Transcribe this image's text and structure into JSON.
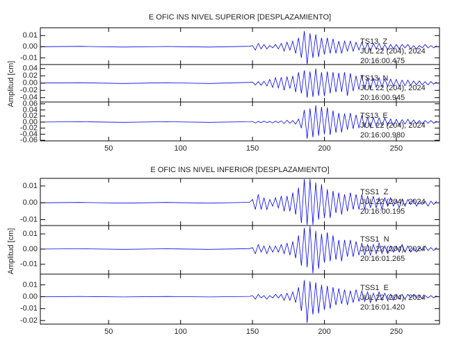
{
  "sections": [
    {
      "title": "E OFIC INS NIVEL SUPERIOR [DESPLAZAMIENTO]",
      "ylabel": "Amplitud [cm]"
    },
    {
      "title": "E OFIC INS NIVEL INFERIOR [DESPLAZAMIENTO]",
      "ylabel": "Amplitud [cm]"
    }
  ],
  "chart_data": [
    {
      "type": "line",
      "annotations": [
        "TS13  Z",
        "JUL 22 (204), 2024",
        "20:16:00.475"
      ],
      "color": "#0000ee",
      "xlim": [
        2.5,
        280
      ],
      "xticks": [
        50,
        100,
        150,
        200,
        250
      ],
      "ylim": [
        -0.016,
        0.017
      ],
      "yticks": [
        0.01,
        {
          "value": 0,
          "label": "0.00"
        },
        -0.01
      ],
      "x": [
        3,
        30,
        60,
        90,
        120,
        148,
        150,
        152,
        154,
        156,
        158,
        160,
        162,
        164,
        166,
        168,
        170,
        172,
        174,
        176,
        178,
        180,
        182,
        184,
        186,
        188,
        190,
        192,
        194,
        196,
        198,
        200,
        202,
        204,
        206,
        208,
        210,
        212,
        214,
        216,
        218,
        220,
        222,
        224,
        226,
        228,
        230,
        232,
        234,
        236,
        238,
        240,
        242,
        244,
        246,
        248,
        250,
        252,
        254,
        256,
        258,
        260,
        262,
        264,
        266,
        268,
        270,
        272,
        274,
        276,
        278
      ],
      "values": [
        0,
        0.0003,
        -0.0003,
        0.0002,
        -0.0003,
        0.0004,
        0.001,
        -0.003,
        0.003,
        -0.002,
        0.002,
        -0.002,
        0.001,
        -0.001,
        0.002,
        -0.002,
        0.003,
        -0.004,
        0.004,
        -0.003,
        0.005,
        -0.006,
        0.008,
        -0.01,
        0.014,
        -0.016,
        0.012,
        -0.01,
        0.011,
        -0.009,
        0.008,
        -0.007,
        0.008,
        -0.006,
        0.007,
        -0.006,
        0.005,
        -0.006,
        0.005,
        -0.004,
        0.005,
        -0.004,
        0.004,
        -0.003,
        0.004,
        -0.003,
        0.003,
        -0.004,
        0.003,
        -0.002,
        0.003,
        -0.003,
        0.002,
        -0.003,
        0.002,
        -0.002,
        0.002,
        -0.002,
        0.002,
        -0.001,
        0.002,
        -0.002,
        0.001,
        -0.002,
        0.001,
        -0.001,
        0.002,
        -0.001,
        0.001,
        -0.001,
        0.001
      ]
    },
    {
      "type": "line",
      "annotations": [
        "TS13  N",
        "JUL 22 (204), 2024",
        "20:16:00.945"
      ],
      "color": "#0000ee",
      "xlim": [
        2.5,
        280
      ],
      "xticks": [
        50,
        100,
        150,
        200,
        250
      ],
      "ylim": [
        -0.052,
        0.051
      ],
      "yticks": [
        0.04,
        0.02,
        {
          "value": 0,
          "label": "0.00"
        },
        -0.02,
        -0.04
      ],
      "x": [
        3,
        30,
        60,
        90,
        120,
        148,
        150,
        152,
        154,
        156,
        158,
        160,
        162,
        164,
        166,
        168,
        170,
        172,
        174,
        176,
        178,
        180,
        182,
        184,
        186,
        188,
        190,
        192,
        194,
        196,
        198,
        200,
        202,
        204,
        206,
        208,
        210,
        212,
        214,
        216,
        218,
        220,
        222,
        224,
        226,
        228,
        230,
        232,
        234,
        236,
        238,
        240,
        242,
        244,
        246,
        248,
        250,
        252,
        254,
        256,
        258,
        260,
        262,
        264,
        266,
        268,
        270,
        272,
        274,
        276,
        278
      ],
      "values": [
        0,
        0.001,
        -0.001,
        0.001,
        -0.001,
        0.002,
        0.003,
        -0.005,
        0.004,
        -0.006,
        0.005,
        -0.008,
        0.01,
        -0.012,
        0.015,
        -0.013,
        0.016,
        -0.02,
        0.018,
        -0.015,
        0.02,
        -0.025,
        0.03,
        -0.028,
        0.035,
        -0.04,
        0.032,
        -0.038,
        0.04,
        -0.035,
        0.03,
        -0.036,
        0.032,
        -0.028,
        0.03,
        -0.025,
        0.028,
        -0.024,
        0.03,
        -0.035,
        0.027,
        -0.022,
        0.02,
        -0.018,
        0.022,
        -0.017,
        0.015,
        -0.018,
        0.014,
        -0.012,
        0.015,
        -0.011,
        0.012,
        -0.01,
        0.011,
        -0.008,
        0.01,
        -0.009,
        0.008,
        -0.007,
        0.008,
        -0.006,
        0.006,
        -0.005,
        0.006,
        -0.005,
        0.004,
        -0.005,
        0.004,
        -0.003,
        0.003
      ]
    },
    {
      "type": "line",
      "annotations": [
        "TS13  E",
        "JUL 22 (204), 2024",
        "20:16:00.980"
      ],
      "color": "#0000ee",
      "xlim": [
        2.5,
        280
      ],
      "xticks": [
        50,
        100,
        150,
        200,
        250
      ],
      "ylim": [
        -0.062,
        0.066
      ],
      "yticks": [
        0.06,
        0.04,
        0.02,
        {
          "value": 0,
          "label": "0.00"
        },
        -0.02,
        -0.04,
        -0.06
      ],
      "x": [
        3,
        30,
        60,
        90,
        120,
        148,
        150,
        152,
        154,
        156,
        158,
        160,
        162,
        164,
        166,
        168,
        170,
        172,
        174,
        176,
        178,
        180,
        182,
        184,
        186,
        188,
        190,
        192,
        194,
        196,
        198,
        200,
        202,
        204,
        206,
        208,
        210,
        212,
        214,
        216,
        218,
        220,
        222,
        224,
        226,
        228,
        230,
        232,
        234,
        236,
        238,
        240,
        242,
        244,
        246,
        248,
        250,
        252,
        254,
        256,
        258,
        260,
        262,
        264,
        266,
        268,
        270,
        272,
        274,
        276,
        278
      ],
      "values": [
        0,
        0.001,
        -0.001,
        0.001,
        -0.001,
        0.001,
        0.002,
        -0.003,
        0.002,
        -0.002,
        0.003,
        -0.002,
        0.002,
        -0.003,
        0.003,
        -0.002,
        0.004,
        -0.005,
        0.006,
        -0.004,
        0.005,
        -0.007,
        0.01,
        -0.02,
        0.04,
        -0.055,
        0.045,
        -0.05,
        0.055,
        -0.045,
        0.05,
        -0.04,
        0.048,
        -0.042,
        0.038,
        -0.035,
        0.03,
        -0.034,
        0.028,
        -0.025,
        0.03,
        -0.022,
        0.024,
        -0.02,
        0.022,
        -0.018,
        0.016,
        -0.018,
        0.015,
        -0.013,
        0.014,
        -0.012,
        0.013,
        -0.011,
        0.01,
        -0.012,
        0.009,
        -0.01,
        0.008,
        -0.007,
        0.009,
        -0.006,
        0.007,
        -0.006,
        0.005,
        -0.006,
        0.005,
        -0.004,
        0.005,
        -0.004,
        0.003
      ]
    },
    {
      "type": "line",
      "annotations": [
        "TSS1  Z",
        "JUL 22 (204), 2024",
        "20:16:00.195"
      ],
      "color": "#0000ee",
      "xlim": [
        2.5,
        280
      ],
      "xticks": [
        50,
        100,
        150,
        200,
        250
      ],
      "ylim": [
        -0.0135,
        0.0145
      ],
      "yticks": [
        0.01,
        {
          "value": 0,
          "label": "0.00"
        },
        -0.01
      ],
      "x": [
        3,
        30,
        60,
        90,
        120,
        148,
        150,
        152,
        154,
        156,
        158,
        160,
        162,
        164,
        166,
        168,
        170,
        172,
        174,
        176,
        178,
        180,
        182,
        184,
        186,
        188,
        190,
        192,
        194,
        196,
        198,
        200,
        202,
        204,
        206,
        208,
        210,
        212,
        214,
        216,
        218,
        220,
        222,
        224,
        226,
        228,
        230,
        232,
        234,
        236,
        238,
        240,
        242,
        244,
        246,
        248,
        250,
        252,
        254,
        256,
        258,
        260,
        262,
        264,
        266,
        268,
        270,
        272,
        274,
        276,
        278
      ],
      "values": [
        0,
        0.0002,
        -0.0002,
        0.0002,
        -0.0002,
        0.0003,
        0.002,
        -0.004,
        0.005,
        -0.004,
        0.003,
        -0.004,
        0.002,
        -0.002,
        0.003,
        -0.003,
        0.004,
        -0.005,
        0.004,
        -0.005,
        0.006,
        -0.007,
        0.009,
        -0.012,
        0.014,
        -0.013,
        0.014,
        -0.013,
        0.012,
        -0.01,
        0.011,
        -0.009,
        0.008,
        -0.009,
        0.007,
        -0.006,
        0.006,
        -0.007,
        0.005,
        -0.005,
        0.006,
        -0.004,
        0.005,
        -0.004,
        0.005,
        -0.004,
        0.004,
        -0.003,
        0.004,
        -0.003,
        0.003,
        -0.004,
        0.003,
        -0.002,
        0.003,
        -0.002,
        0.002,
        -0.003,
        0.002,
        -0.002,
        0.002,
        -0.001,
        0.002,
        -0.002,
        0.001,
        -0.001,
        0.001,
        -0.002,
        0.001,
        -0.001,
        0.001
      ]
    },
    {
      "type": "line",
      "annotations": [
        "TSS1  N",
        "JUL 22 (204), 2024",
        "20:16:01.265"
      ],
      "color": "#0000ee",
      "xlim": [
        2.5,
        280
      ],
      "xticks": [
        50,
        100,
        150,
        200,
        250
      ],
      "ylim": [
        -0.0165,
        0.0155
      ],
      "yticks": [
        0.01,
        {
          "value": 0,
          "label": "0.00"
        },
        -0.01
      ],
      "x": [
        3,
        30,
        60,
        90,
        120,
        148,
        150,
        152,
        154,
        156,
        158,
        160,
        162,
        164,
        166,
        168,
        170,
        172,
        174,
        176,
        178,
        180,
        182,
        184,
        186,
        188,
        190,
        192,
        194,
        196,
        198,
        200,
        202,
        204,
        206,
        208,
        210,
        212,
        214,
        216,
        218,
        220,
        222,
        224,
        226,
        228,
        230,
        232,
        234,
        236,
        238,
        240,
        242,
        244,
        246,
        248,
        250,
        252,
        254,
        256,
        258,
        260,
        262,
        264,
        266,
        268,
        270,
        272,
        274,
        276,
        278
      ],
      "values": [
        0,
        0.0002,
        -0.0002,
        0.0002,
        -0.0002,
        0.0003,
        0.001,
        -0.003,
        0.003,
        -0.002,
        0.002,
        -0.003,
        0.002,
        -0.002,
        0.002,
        -0.002,
        0.003,
        -0.003,
        0.004,
        -0.004,
        0.005,
        -0.006,
        0.009,
        -0.011,
        0.014,
        -0.012,
        0.015,
        -0.016,
        0.012,
        -0.013,
        0.01,
        -0.009,
        0.011,
        -0.008,
        0.009,
        -0.007,
        0.006,
        -0.008,
        0.006,
        -0.005,
        0.006,
        -0.005,
        0.005,
        -0.004,
        0.004,
        -0.004,
        0.003,
        -0.004,
        0.003,
        -0.003,
        0.004,
        -0.003,
        0.002,
        -0.003,
        0.002,
        -0.002,
        0.002,
        -0.002,
        0.003,
        -0.002,
        0.002,
        -0.002,
        0.001,
        -0.002,
        0.001,
        -0.001,
        0.002,
        -0.001,
        0.001,
        -0.001,
        0.001
      ]
    },
    {
      "type": "line",
      "annotations": [
        "TSS1  E",
        "JUL 22 (204), 2024",
        "20:16:01.420"
      ],
      "color": "#0000ee",
      "xlim": [
        2.5,
        280
      ],
      "xticks": [
        50,
        100,
        150,
        200,
        250
      ],
      "ylim": [
        -0.023,
        0.019
      ],
      "yticks": [
        0.01,
        {
          "value": 0,
          "label": "0.00"
        },
        -0.01,
        -0.02
      ],
      "x": [
        3,
        30,
        60,
        90,
        120,
        148,
        150,
        152,
        154,
        156,
        158,
        160,
        162,
        164,
        166,
        168,
        170,
        172,
        174,
        176,
        178,
        180,
        182,
        184,
        186,
        188,
        190,
        192,
        194,
        196,
        198,
        200,
        202,
        204,
        206,
        208,
        210,
        212,
        214,
        216,
        218,
        220,
        222,
        224,
        226,
        228,
        230,
        232,
        234,
        236,
        238,
        240,
        242,
        244,
        246,
        248,
        250,
        252,
        254,
        256,
        258,
        260,
        262,
        264,
        266,
        268,
        270,
        272,
        274,
        276,
        278
      ],
      "values": [
        0,
        0.0002,
        -0.0002,
        0.0002,
        -0.0002,
        0.0003,
        0.001,
        -0.002,
        0.002,
        -0.001,
        0.001,
        -0.002,
        0.001,
        -0.001,
        0.002,
        -0.001,
        0.002,
        -0.003,
        0.003,
        -0.003,
        0.004,
        -0.005,
        0.008,
        -0.012,
        0.014,
        -0.022,
        0.013,
        -0.015,
        0.012,
        -0.014,
        0.01,
        -0.011,
        0.009,
        -0.01,
        0.008,
        -0.007,
        0.007,
        -0.006,
        0.006,
        -0.007,
        0.005,
        -0.005,
        0.006,
        -0.004,
        0.005,
        -0.004,
        0.004,
        -0.005,
        0.003,
        -0.004,
        0.004,
        -0.003,
        0.003,
        -0.003,
        0.002,
        -0.003,
        0.002,
        -0.002,
        0.002,
        -0.002,
        0.002,
        -0.001,
        0.002,
        -0.001,
        0.001,
        -0.002,
        0.001,
        -0.001,
        0.001,
        -0.001,
        0.001
      ]
    }
  ]
}
